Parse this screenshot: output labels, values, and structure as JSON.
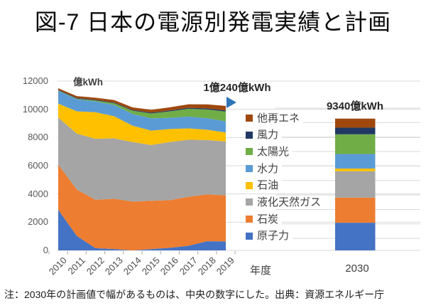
{
  "title": "図-7 日本の電源別発電実績と計画",
  "note": "注：2030年の計画値で幅があるものは、中央の数字にした。出典：資源エネルギー庁",
  "y_axis": {
    "unit": "億kWh"
  },
  "x_axis": {
    "axis_title": "年度",
    "bar_category": "2030"
  },
  "annotations": {
    "area_total": "1億240億kWh",
    "bar_total": "9340億kWh"
  },
  "colors": {
    "gridline": "#D9D9D9",
    "tick": "#A6A6A6",
    "marker_triangle": "#2E75B6",
    "axis_text": "#595959"
  },
  "chart_data": {
    "type": "area",
    "subtype": "stacked-area-history-with-stacked-bar-projection",
    "title": "図-7 日本の電源別発電実績と計画",
    "unit": "億kWh",
    "xlabel": "年度",
    "x": [
      "2010",
      "2011",
      "2012",
      "2013",
      "2014",
      "2015",
      "2016",
      "2017",
      "2018",
      "2019"
    ],
    "bar_category": "2030",
    "ylim": [
      0,
      12000
    ],
    "yticks": [
      0,
      2000,
      4000,
      6000,
      8000,
      10000,
      12000
    ],
    "grid": true,
    "legend_position": "right-overlay",
    "legend_order_top_to_bottom": [
      "他再エネ",
      "風力",
      "太陽光",
      "水力",
      "石油",
      "液化天然ガス",
      "石炭",
      "原子力"
    ],
    "area_total_label": "1億240億kWh",
    "area_total_value_2019": 10240,
    "bar_total_label": "9340億kWh",
    "bar_total_value_2030": 9340,
    "series": [
      {
        "name": "原子力",
        "color": "#4472C4",
        "values": [
          2882,
          1018,
          159,
          93,
          0,
          94,
          181,
          329,
          649,
          638
        ],
        "value_2030": 1960
      },
      {
        "name": "石炭",
        "color": "#ED7D31",
        "values": [
          3199,
          3292,
          3430,
          3566,
          3461,
          3420,
          3383,
          3472,
          3324,
          3264
        ],
        "value_2030": 1780
      },
      {
        "name": "液化天然ガス",
        "color": "#A5A5A5",
        "values": [
          3339,
          3965,
          4320,
          4285,
          4213,
          3952,
          4117,
          4043,
          3850,
          3810
        ],
        "value_2030": 1870
      },
      {
        "name": "石油",
        "color": "#FFC000",
        "values": [
          983,
          1583,
          1885,
          1567,
          1160,
          1022,
          921,
          804,
          730,
          642
        ],
        "value_2030": 190
      },
      {
        "name": "水力",
        "color": "#5B9BD5",
        "values": [
          907,
          849,
          765,
          794,
          835,
          871,
          795,
          838,
          810,
          796
        ],
        "value_2030": 1030
      },
      {
        "name": "太陽光",
        "color": "#70AD47",
        "values": [
          35,
          48,
          66,
          129,
          230,
          348,
          458,
          551,
          627,
          690
        ],
        "value_2030": 1400
      },
      {
        "name": "風力",
        "color": "#203864",
        "values": [
          40,
          47,
          48,
          52,
          52,
          56,
          62,
          65,
          75,
          76
        ],
        "value_2030": 470
      },
      {
        "name": "他再エネ",
        "color": "#9E480E",
        "values": [
          109,
          135,
          150,
          170,
          185,
          200,
          225,
          255,
          285,
          324
        ],
        "value_2030": 640
      }
    ]
  }
}
